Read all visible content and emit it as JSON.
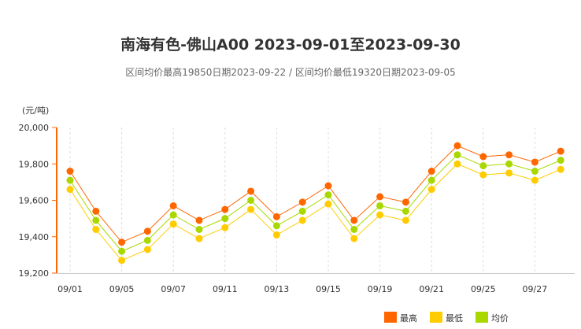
{
  "chart_data": {
    "type": "line",
    "title": "南海有色-佛山A00 2023-09-01至2023-09-30",
    "subtitle": "区间均价最高19850日期2023-09-22 / 区间均价最低19320日期2023-09-05",
    "ylabel": "(元/吨)",
    "ylim": [
      19200,
      20000
    ],
    "yticks": [
      "19,200",
      "19,400",
      "19,600",
      "19,800",
      "20,000"
    ],
    "ytick_values": [
      19200,
      19400,
      19600,
      19800,
      20000
    ],
    "x": [
      "09/01",
      "09/04",
      "09/05",
      "09/06",
      "09/07",
      "09/08",
      "09/11",
      "09/12",
      "09/13",
      "09/14",
      "09/15",
      "09/18",
      "09/19",
      "09/20",
      "09/21",
      "09/22",
      "09/25",
      "09/26",
      "09/27",
      "09/28"
    ],
    "xtick_labels": [
      "09/01",
      "09/05",
      "09/07",
      "09/11",
      "09/13",
      "09/15",
      "09/19",
      "09/21",
      "09/25",
      "09/27"
    ],
    "grid": "vertical dashed at labeled ticks",
    "legend_placement": "bottom-right",
    "series": [
      {
        "name": "最高",
        "color": "#ff6600",
        "values": [
          19760,
          19540,
          19370,
          19430,
          19570,
          19490,
          19550,
          19650,
          19510,
          19590,
          19680,
          19490,
          19620,
          19590,
          19760,
          19900,
          19840,
          19850,
          19810,
          19870
        ]
      },
      {
        "name": "最低",
        "color": "#ffcc00",
        "values": [
          19660,
          19440,
          19270,
          19330,
          19470,
          19390,
          19450,
          19550,
          19410,
          19490,
          19580,
          19390,
          19520,
          19490,
          19660,
          19800,
          19740,
          19750,
          19710,
          19770
        ]
      },
      {
        "name": "均价",
        "color": "#a8d800",
        "values": [
          19710,
          19490,
          19320,
          19380,
          19520,
          19440,
          19500,
          19600,
          19460,
          19540,
          19630,
          19440,
          19570,
          19540,
          19710,
          19850,
          19790,
          19800,
          19760,
          19820
        ]
      }
    ]
  }
}
